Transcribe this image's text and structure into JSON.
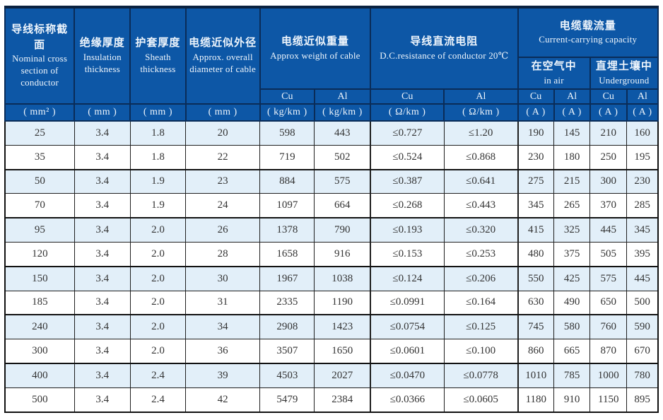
{
  "colors": {
    "header_bg": "#0d57a6",
    "header_border": "#0a2c58",
    "header_text": "#eef5fc",
    "row_alt_bg": "#e2eff9",
    "grid_line": "#1f1f1f",
    "data_text": "#333333"
  },
  "table": {
    "header": {
      "nominal_cross_section": {
        "zh": "导线标称截面",
        "en": "Nominal cross section of conductor"
      },
      "insulation_thickness": {
        "zh": "绝缘厚度",
        "en": "Insulation thickness"
      },
      "sheath_thickness": {
        "zh": "护套厚度",
        "en": "Sheath thickness"
      },
      "approx_diameter": {
        "zh": "电缆近似外径",
        "en": "Approx. overall diameter of cable"
      },
      "approx_weight": {
        "zh": "电缆近似重量",
        "en": "Approx weight of cable"
      },
      "dc_resistance": {
        "zh": "导线直流电阻",
        "en": "D.C.resistance of conductor 20℃"
      },
      "capacity": {
        "zh": "电缆载流量",
        "en": "Current-carrying capacity"
      },
      "in_air": {
        "zh": "在空气中",
        "en": "in air"
      },
      "underground": {
        "zh": "直埋土壤中",
        "en": "Underground"
      }
    },
    "metal_row": [
      "Cu",
      "Al",
      "Cu",
      "Al",
      "Cu",
      "Al",
      "Cu",
      "Al"
    ],
    "units": [
      "( mm² )",
      "( mm )",
      "( mm )",
      "( mm )",
      "( kg/km )",
      "( kg/km )",
      "( Ω/km )",
      "( Ω/km )",
      "( A )",
      "( A )",
      "( A )",
      "( A )"
    ],
    "rows": [
      [
        "25",
        "3.4",
        "1.8",
        "20",
        "598",
        "443",
        "≤0.727",
        "≤1.20",
        "190",
        "145",
        "210",
        "160"
      ],
      [
        "35",
        "3.4",
        "1.8",
        "22",
        "719",
        "502",
        "≤0.524",
        "≤0.868",
        "230",
        "180",
        "250",
        "195"
      ],
      [
        "50",
        "3.4",
        "1.9",
        "23",
        "884",
        "575",
        "≤0.387",
        "≤0.641",
        "275",
        "215",
        "300",
        "230"
      ],
      [
        "70",
        "3.4",
        "1.9",
        "24",
        "1097",
        "664",
        "≤0.268",
        "≤0.443",
        "345",
        "265",
        "370",
        "285"
      ],
      [
        "95",
        "3.4",
        "2.0",
        "26",
        "1378",
        "790",
        "≤0.193",
        "≤0.320",
        "415",
        "325",
        "445",
        "345"
      ],
      [
        "120",
        "3.4",
        "2.0",
        "28",
        "1658",
        "916",
        "≤0.153",
        "≤0.253",
        "480",
        "375",
        "505",
        "395"
      ],
      [
        "150",
        "3.4",
        "2.0",
        "30",
        "1967",
        "1038",
        "≤0.124",
        "≤0.206",
        "550",
        "425",
        "575",
        "445"
      ],
      [
        "185",
        "3.4",
        "2.0",
        "31",
        "2335",
        "1190",
        "≤0.0991",
        "≤0.164",
        "630",
        "490",
        "650",
        "500"
      ],
      [
        "240",
        "3.4",
        "2.0",
        "34",
        "2908",
        "1423",
        "≤0.0754",
        "≤0.125",
        "745",
        "580",
        "760",
        "590"
      ],
      [
        "300",
        "3.4",
        "2.0",
        "36",
        "3507",
        "1650",
        "≤0.0601",
        "≤0.100",
        "860",
        "665",
        "870",
        "670"
      ],
      [
        "400",
        "3.4",
        "2.4",
        "39",
        "4503",
        "2027",
        "≤0.0470",
        "≤0.0778",
        "1010",
        "785",
        "1000",
        "780"
      ],
      [
        "500",
        "3.4",
        "2.4",
        "42",
        "5479",
        "2384",
        "≤0.0366",
        "≤0.0605",
        "1180",
        "910",
        "1150",
        "895"
      ]
    ]
  }
}
